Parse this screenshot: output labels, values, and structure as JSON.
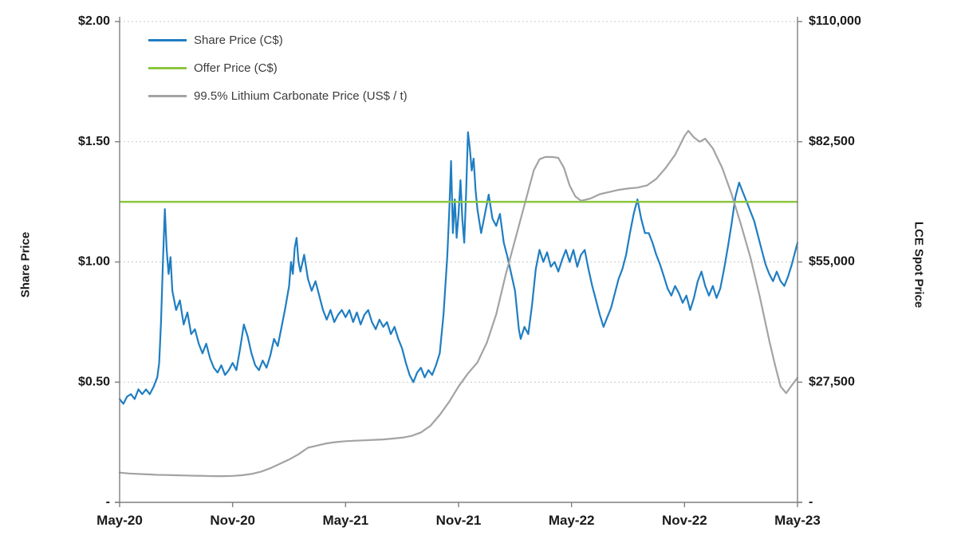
{
  "chart_data": {
    "type": "line",
    "title": "",
    "ylabel_left": "Share Price",
    "ylabel_right": "LCE Spot Price",
    "legend_position": "top-left",
    "grid": "dotted-horizontal",
    "x_axis": {
      "range": [
        0,
        36
      ],
      "ticks": [
        {
          "value": 0,
          "label": "May-20"
        },
        {
          "value": 6,
          "label": "Nov-20"
        },
        {
          "value": 12,
          "label": "May-21"
        },
        {
          "value": 18,
          "label": "Nov-21"
        },
        {
          "value": 24,
          "label": "May-22"
        },
        {
          "value": 30,
          "label": "Nov-22"
        },
        {
          "value": 36,
          "label": "May-23"
        }
      ]
    },
    "left_axis": {
      "range": [
        0,
        2
      ],
      "ticks": [
        {
          "value": 2.0,
          "label": "$2.00"
        },
        {
          "value": 1.5,
          "label": "$1.50"
        },
        {
          "value": 1.0,
          "label": "$1.00"
        },
        {
          "value": 0.5,
          "label": "$0.50"
        },
        {
          "value": 0.0,
          "label": "-"
        }
      ]
    },
    "right_axis": {
      "range": [
        0,
        110000
      ],
      "ticks": [
        {
          "value": 110000,
          "label": "$110,000"
        },
        {
          "value": 82500,
          "label": "$82,500"
        },
        {
          "value": 55000,
          "label": "$55,000"
        },
        {
          "value": 27500,
          "label": "$27,500"
        },
        {
          "value": 0,
          "label": "-"
        }
      ]
    },
    "gridline_values_left": [
      0.5,
      1.0,
      1.5,
      2.0
    ],
    "series": [
      {
        "name": "Share Price (C$)",
        "color": "#1f7ec2",
        "axis": "left",
        "kind": "line",
        "points": [
          [
            0,
            0.43
          ],
          [
            0.2,
            0.41
          ],
          [
            0.4,
            0.44
          ],
          [
            0.6,
            0.45
          ],
          [
            0.8,
            0.43
          ],
          [
            1,
            0.47
          ],
          [
            1.2,
            0.45
          ],
          [
            1.4,
            0.47
          ],
          [
            1.6,
            0.45
          ],
          [
            1.8,
            0.48
          ],
          [
            2,
            0.52
          ],
          [
            2.1,
            0.58
          ],
          [
            2.2,
            0.75
          ],
          [
            2.3,
            1.0
          ],
          [
            2.4,
            1.22
          ],
          [
            2.5,
            1.05
          ],
          [
            2.6,
            0.95
          ],
          [
            2.7,
            1.02
          ],
          [
            2.8,
            0.88
          ],
          [
            3,
            0.8
          ],
          [
            3.2,
            0.84
          ],
          [
            3.4,
            0.74
          ],
          [
            3.6,
            0.79
          ],
          [
            3.8,
            0.7
          ],
          [
            4,
            0.72
          ],
          [
            4.2,
            0.66
          ],
          [
            4.4,
            0.62
          ],
          [
            4.6,
            0.66
          ],
          [
            4.8,
            0.6
          ],
          [
            5,
            0.56
          ],
          [
            5.2,
            0.54
          ],
          [
            5.4,
            0.57
          ],
          [
            5.6,
            0.53
          ],
          [
            5.8,
            0.55
          ],
          [
            6,
            0.58
          ],
          [
            6.2,
            0.55
          ],
          [
            6.4,
            0.64
          ],
          [
            6.6,
            0.74
          ],
          [
            6.8,
            0.69
          ],
          [
            7,
            0.62
          ],
          [
            7.2,
            0.57
          ],
          [
            7.4,
            0.55
          ],
          [
            7.6,
            0.59
          ],
          [
            7.8,
            0.56
          ],
          [
            8,
            0.61
          ],
          [
            8.2,
            0.68
          ],
          [
            8.4,
            0.65
          ],
          [
            8.6,
            0.73
          ],
          [
            8.8,
            0.81
          ],
          [
            9,
            0.9
          ],
          [
            9.1,
            1.0
          ],
          [
            9.2,
            0.95
          ],
          [
            9.3,
            1.06
          ],
          [
            9.4,
            1.1
          ],
          [
            9.5,
            1.0
          ],
          [
            9.6,
            0.96
          ],
          [
            9.8,
            1.03
          ],
          [
            10,
            0.93
          ],
          [
            10.2,
            0.88
          ],
          [
            10.4,
            0.92
          ],
          [
            10.6,
            0.86
          ],
          [
            10.8,
            0.8
          ],
          [
            11,
            0.76
          ],
          [
            11.2,
            0.8
          ],
          [
            11.4,
            0.75
          ],
          [
            11.6,
            0.78
          ],
          [
            11.8,
            0.8
          ],
          [
            12,
            0.77
          ],
          [
            12.2,
            0.8
          ],
          [
            12.4,
            0.75
          ],
          [
            12.6,
            0.79
          ],
          [
            12.8,
            0.74
          ],
          [
            13,
            0.78
          ],
          [
            13.2,
            0.8
          ],
          [
            13.4,
            0.75
          ],
          [
            13.6,
            0.72
          ],
          [
            13.8,
            0.76
          ],
          [
            14,
            0.73
          ],
          [
            14.2,
            0.75
          ],
          [
            14.4,
            0.7
          ],
          [
            14.6,
            0.73
          ],
          [
            14.8,
            0.68
          ],
          [
            15,
            0.64
          ],
          [
            15.2,
            0.58
          ],
          [
            15.4,
            0.53
          ],
          [
            15.6,
            0.5
          ],
          [
            15.8,
            0.54
          ],
          [
            16,
            0.56
          ],
          [
            16.2,
            0.52
          ],
          [
            16.4,
            0.55
          ],
          [
            16.6,
            0.53
          ],
          [
            16.8,
            0.57
          ],
          [
            17,
            0.62
          ],
          [
            17.2,
            0.78
          ],
          [
            17.4,
            1.02
          ],
          [
            17.5,
            1.2
          ],
          [
            17.6,
            1.42
          ],
          [
            17.7,
            1.12
          ],
          [
            17.8,
            1.26
          ],
          [
            17.9,
            1.1
          ],
          [
            18,
            1.2
          ],
          [
            18.1,
            1.34
          ],
          [
            18.2,
            1.18
          ],
          [
            18.3,
            1.08
          ],
          [
            18.4,
            1.28
          ],
          [
            18.5,
            1.54
          ],
          [
            18.6,
            1.47
          ],
          [
            18.7,
            1.38
          ],
          [
            18.8,
            1.43
          ],
          [
            18.9,
            1.3
          ],
          [
            19,
            1.22
          ],
          [
            19.2,
            1.12
          ],
          [
            19.4,
            1.2
          ],
          [
            19.6,
            1.28
          ],
          [
            19.8,
            1.18
          ],
          [
            20,
            1.15
          ],
          [
            20.2,
            1.2
          ],
          [
            20.4,
            1.08
          ],
          [
            20.6,
            1.02
          ],
          [
            20.8,
            0.95
          ],
          [
            21,
            0.88
          ],
          [
            21.2,
            0.72
          ],
          [
            21.3,
            0.68
          ],
          [
            21.5,
            0.73
          ],
          [
            21.7,
            0.7
          ],
          [
            21.9,
            0.82
          ],
          [
            22.1,
            0.97
          ],
          [
            22.3,
            1.05
          ],
          [
            22.5,
            1.0
          ],
          [
            22.7,
            1.04
          ],
          [
            22.9,
            0.98
          ],
          [
            23.1,
            1.0
          ],
          [
            23.3,
            0.96
          ],
          [
            23.5,
            1.01
          ],
          [
            23.7,
            1.05
          ],
          [
            23.9,
            1.0
          ],
          [
            24.1,
            1.05
          ],
          [
            24.3,
            0.98
          ],
          [
            24.5,
            1.03
          ],
          [
            24.7,
            1.05
          ],
          [
            24.9,
            0.97
          ],
          [
            25.1,
            0.9
          ],
          [
            25.3,
            0.84
          ],
          [
            25.5,
            0.78
          ],
          [
            25.7,
            0.73
          ],
          [
            25.9,
            0.77
          ],
          [
            26.1,
            0.81
          ],
          [
            26.3,
            0.87
          ],
          [
            26.5,
            0.93
          ],
          [
            26.7,
            0.97
          ],
          [
            26.9,
            1.03
          ],
          [
            27.1,
            1.12
          ],
          [
            27.3,
            1.2
          ],
          [
            27.5,
            1.26
          ],
          [
            27.7,
            1.18
          ],
          [
            27.9,
            1.12
          ],
          [
            28.1,
            1.12
          ],
          [
            28.3,
            1.08
          ],
          [
            28.5,
            1.03
          ],
          [
            28.7,
            0.99
          ],
          [
            28.9,
            0.94
          ],
          [
            29.1,
            0.89
          ],
          [
            29.3,
            0.86
          ],
          [
            29.5,
            0.9
          ],
          [
            29.7,
            0.87
          ],
          [
            29.9,
            0.83
          ],
          [
            30.1,
            0.86
          ],
          [
            30.3,
            0.8
          ],
          [
            30.5,
            0.85
          ],
          [
            30.7,
            0.92
          ],
          [
            30.9,
            0.96
          ],
          [
            31.1,
            0.9
          ],
          [
            31.3,
            0.86
          ],
          [
            31.5,
            0.9
          ],
          [
            31.7,
            0.85
          ],
          [
            31.9,
            0.89
          ],
          [
            32.1,
            0.97
          ],
          [
            32.3,
            1.06
          ],
          [
            32.5,
            1.16
          ],
          [
            32.7,
            1.27
          ],
          [
            32.9,
            1.33
          ],
          [
            33.1,
            1.29
          ],
          [
            33.3,
            1.25
          ],
          [
            33.5,
            1.21
          ],
          [
            33.7,
            1.17
          ],
          [
            33.9,
            1.11
          ],
          [
            34.1,
            1.05
          ],
          [
            34.3,
            0.99
          ],
          [
            34.5,
            0.95
          ],
          [
            34.7,
            0.92
          ],
          [
            34.9,
            0.96
          ],
          [
            35.1,
            0.92
          ],
          [
            35.3,
            0.9
          ],
          [
            35.5,
            0.94
          ],
          [
            35.7,
            0.99
          ],
          [
            36,
            1.08
          ]
        ]
      },
      {
        "name": "Offer Price (C$)",
        "color": "#8cc63f",
        "axis": "left",
        "kind": "hline",
        "value": 1.25
      },
      {
        "name": "99.5% Lithium Carbonate Price (US$ / t)",
        "color": "#a3a3a3",
        "axis": "right",
        "kind": "line",
        "points": [
          [
            0,
            6800
          ],
          [
            0.5,
            6600
          ],
          [
            1,
            6500
          ],
          [
            1.5,
            6400
          ],
          [
            2,
            6300
          ],
          [
            2.5,
            6250
          ],
          [
            3,
            6200
          ],
          [
            3.5,
            6150
          ],
          [
            4,
            6100
          ],
          [
            4.5,
            6050
          ],
          [
            5,
            6000
          ],
          [
            5.5,
            6000
          ],
          [
            6,
            6050
          ],
          [
            6.5,
            6200
          ],
          [
            7,
            6500
          ],
          [
            7.5,
            7000
          ],
          [
            8,
            7800
          ],
          [
            8.5,
            8800
          ],
          [
            9,
            9800
          ],
          [
            9.5,
            11000
          ],
          [
            10,
            12500
          ],
          [
            10.5,
            13000
          ],
          [
            11,
            13500
          ],
          [
            11.5,
            13800
          ],
          [
            12,
            14000
          ],
          [
            12.5,
            14100
          ],
          [
            13,
            14200
          ],
          [
            13.5,
            14300
          ],
          [
            14,
            14400
          ],
          [
            14.5,
            14600
          ],
          [
            15,
            14800
          ],
          [
            15.5,
            15200
          ],
          [
            16,
            16000
          ],
          [
            16.5,
            17500
          ],
          [
            17,
            20000
          ],
          [
            17.5,
            23000
          ],
          [
            18,
            26500
          ],
          [
            18.5,
            29500
          ],
          [
            19,
            32000
          ],
          [
            19.5,
            36500
          ],
          [
            20,
            43000
          ],
          [
            20.5,
            52000
          ],
          [
            21,
            60000
          ],
          [
            21.5,
            68000
          ],
          [
            22,
            76000
          ],
          [
            22.3,
            78500
          ],
          [
            22.6,
            79000
          ],
          [
            23,
            79000
          ],
          [
            23.3,
            78800
          ],
          [
            23.6,
            76500
          ],
          [
            23.9,
            72500
          ],
          [
            24.2,
            70000
          ],
          [
            24.5,
            69000
          ],
          [
            25,
            69500
          ],
          [
            25.5,
            70500
          ],
          [
            26,
            71000
          ],
          [
            26.5,
            71500
          ],
          [
            27,
            71800
          ],
          [
            27.5,
            72000
          ],
          [
            28,
            72500
          ],
          [
            28.5,
            74000
          ],
          [
            29,
            76500
          ],
          [
            29.5,
            79500
          ],
          [
            30,
            83800
          ],
          [
            30.2,
            85000
          ],
          [
            30.5,
            83500
          ],
          [
            30.8,
            82500
          ],
          [
            31.1,
            83200
          ],
          [
            31.5,
            81000
          ],
          [
            32,
            76500
          ],
          [
            32.5,
            70500
          ],
          [
            33,
            63500
          ],
          [
            33.5,
            56000
          ],
          [
            34,
            47000
          ],
          [
            34.5,
            37000
          ],
          [
            34.8,
            31500
          ],
          [
            35.1,
            26500
          ],
          [
            35.4,
            25000
          ],
          [
            35.7,
            26800
          ],
          [
            36,
            28500
          ]
        ]
      }
    ]
  }
}
